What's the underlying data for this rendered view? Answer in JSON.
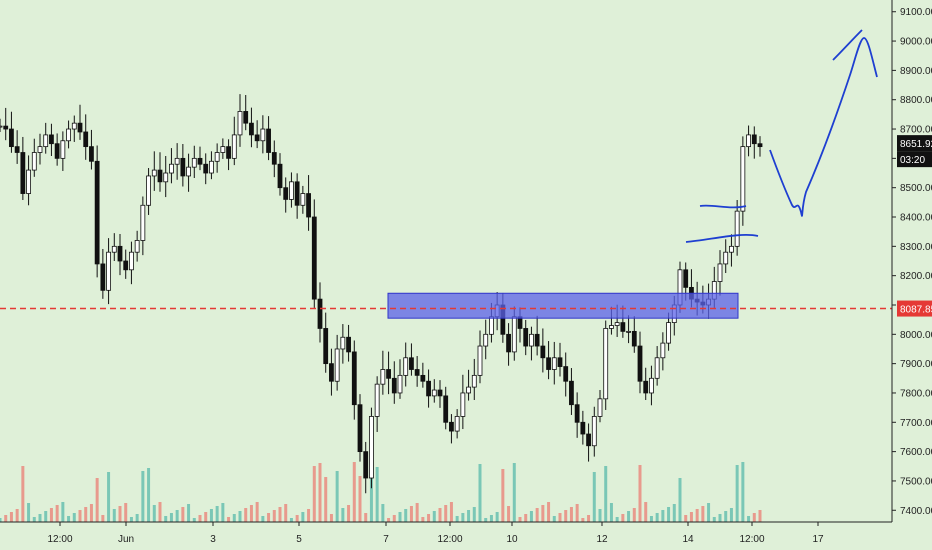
{
  "chart_data": {
    "type": "candlestick",
    "background": "#dff0d8",
    "y_axis": {
      "ylim": [
        7360,
        9140
      ],
      "ticks": [
        "9100.00",
        "9000.00",
        "8900.00",
        "8800.00",
        "8700.00",
        "8600.00",
        "8500.00",
        "8400.00",
        "8300.00",
        "8200.00",
        "8100.00",
        "8000.00",
        "7900.00",
        "7800.00",
        "7700.00",
        "7600.00",
        "7500.00",
        "7400.00"
      ]
    },
    "x_axis": {
      "ticks": [
        "12:00",
        "Jun",
        "3",
        "5",
        "7",
        "12:00",
        "10",
        "12",
        "14",
        "12:00",
        "17"
      ]
    },
    "last_price": {
      "label": "8651.92",
      "countdown": "03:20",
      "value": 8651.92
    },
    "horizontal_line": {
      "label": "8087.85",
      "value": 8087.85,
      "color": "#e53935",
      "style": "dashed"
    },
    "zone": {
      "y_low": 8055,
      "y_high": 8140,
      "color": "#5b61e8"
    },
    "colors": {
      "up": "#26a69a",
      "down": "#ef5350",
      "candle": "#111111",
      "drawing": "#1e3fd1"
    },
    "price_path": [
      [
        8710,
        8700,
        8640,
        8620,
        8480,
        8560,
        8620,
        8640,
        8680,
        8650,
        8600,
        8660,
        8700,
        8720,
        8690,
        8640,
        8590,
        8240,
        8150,
        8280,
        8300,
        8250,
        8220,
        8280,
        8320,
        8440,
        8540,
        8560,
        8520,
        8550,
        8580,
        8600,
        8540,
        8570,
        8600,
        8580,
        8550,
        8590,
        8620,
        8640,
        8600,
        8680,
        8760,
        8720,
        8680,
        8660,
        8700,
        8620,
        8580,
        8500,
        8460,
        8520,
        8440,
        8480,
        8400,
        8120,
        8020,
        7900,
        7840,
        7950,
        7990,
        7940,
        7760,
        7600,
        7510,
        7720,
        7830,
        7880,
        7850,
        7800,
        7860,
        7920,
        7880,
        7860,
        7840,
        7790,
        7810,
        7790,
        7700,
        7670,
        7720,
        7800,
        7820,
        7860,
        7960,
        8000,
        8060,
        8100,
        8000,
        7940,
        8060,
        8020,
        7960,
        8000,
        7960,
        7920,
        7880,
        7920,
        7890,
        7840,
        7760,
        7700,
        7660,
        7620,
        7720,
        7780,
        8020,
        8030,
        8040,
        8010,
        8010,
        7960,
        7840,
        7800,
        7850,
        7920,
        7970,
        8040,
        8100,
        8220,
        8160,
        8120,
        8110,
        8100,
        8120,
        8180,
        8240,
        8280,
        8300,
        8420,
        8640,
        8680,
        8650,
        8640
      ]
    ]
  }
}
